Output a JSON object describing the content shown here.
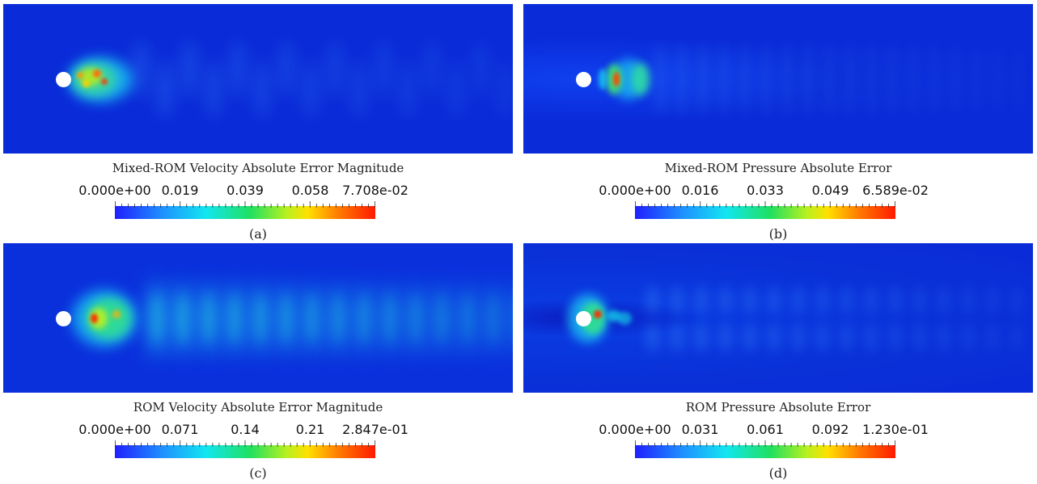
{
  "panels": [
    {
      "id": "a",
      "title": "Mixed-ROM Velocity Absolute Error Magnitude",
      "ticks": [
        "0.000e+00",
        "0.019",
        "0.039",
        "0.058",
        "7.708e-02"
      ],
      "label": "(a)",
      "kind": "velocity-small"
    },
    {
      "id": "b",
      "title": "Mixed-ROM Pressure Absolute Error",
      "ticks": [
        "0.000e+00",
        "0.016",
        "0.033",
        "0.049",
        "6.589e-02"
      ],
      "label": "(b)",
      "kind": "pressure-small"
    },
    {
      "id": "c",
      "title": "ROM Velocity Absolute Error Magnitude",
      "ticks": [
        "0.000e+00",
        "0.071",
        "0.14",
        "0.21",
        "2.847e-01"
      ],
      "label": "(c)",
      "kind": "velocity-large"
    },
    {
      "id": "d",
      "title": "ROM Pressure Absolute Error",
      "ticks": [
        "0.000e+00",
        "0.031",
        "0.061",
        "0.092",
        "1.230e-01"
      ],
      "label": "(d)",
      "kind": "pressure-large"
    }
  ]
}
